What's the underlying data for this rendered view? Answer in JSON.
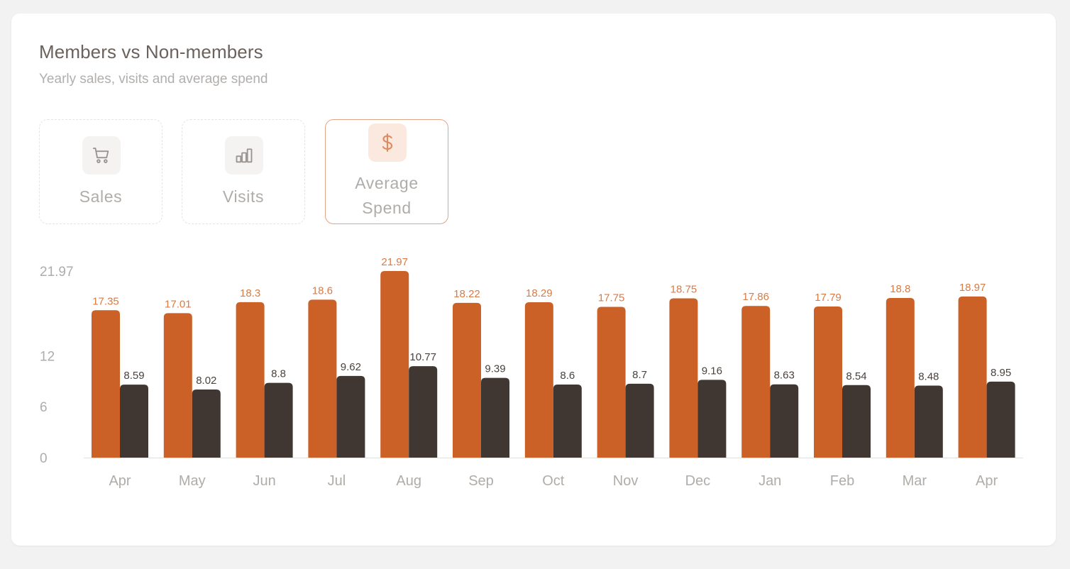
{
  "header": {
    "title": "Members vs Non-members",
    "subtitle": "Yearly sales, visits and average spend"
  },
  "tabs": [
    {
      "id": "sales",
      "label": "Sales",
      "icon": "cart-icon",
      "active": false
    },
    {
      "id": "visits",
      "label": "Visits",
      "icon": "bar-chart-icon",
      "active": false
    },
    {
      "id": "avg",
      "label_line1": "Average",
      "label_line2": "Spend",
      "icon": "dollar-icon",
      "active": true
    }
  ],
  "colors": {
    "members": "#cc6128",
    "non_members": "#403733",
    "members_label": "#d97b45",
    "non_members_label": "#4a423e",
    "axis_text": "#b0aca9",
    "axis_line": "#e2dfdd",
    "active_border": "#e3a486",
    "active_icon": "#e08a5f",
    "inactive_icon": "#9a9491"
  },
  "chart_data": {
    "type": "bar",
    "categories": [
      "Apr",
      "May",
      "Jun",
      "Jul",
      "Aug",
      "Sep",
      "Oct",
      "Nov",
      "Dec",
      "Jan",
      "Feb",
      "Mar",
      "Apr"
    ],
    "series": [
      {
        "values": [
          17.35,
          17.01,
          18.3,
          18.6,
          21.97,
          18.22,
          18.29,
          17.75,
          18.75,
          17.86,
          17.79,
          18.8,
          18.97
        ]
      },
      {
        "values": [
          8.59,
          8.02,
          8.8,
          9.62,
          10.77,
          9.39,
          8.6,
          8.7,
          9.16,
          8.63,
          8.54,
          8.48,
          8.95
        ]
      }
    ],
    "yticks": [
      "0",
      "6",
      "12",
      "21.97"
    ],
    "ylim": [
      0,
      21.97
    ],
    "grid": false,
    "title": "",
    "xlabel": "",
    "ylabel": ""
  }
}
